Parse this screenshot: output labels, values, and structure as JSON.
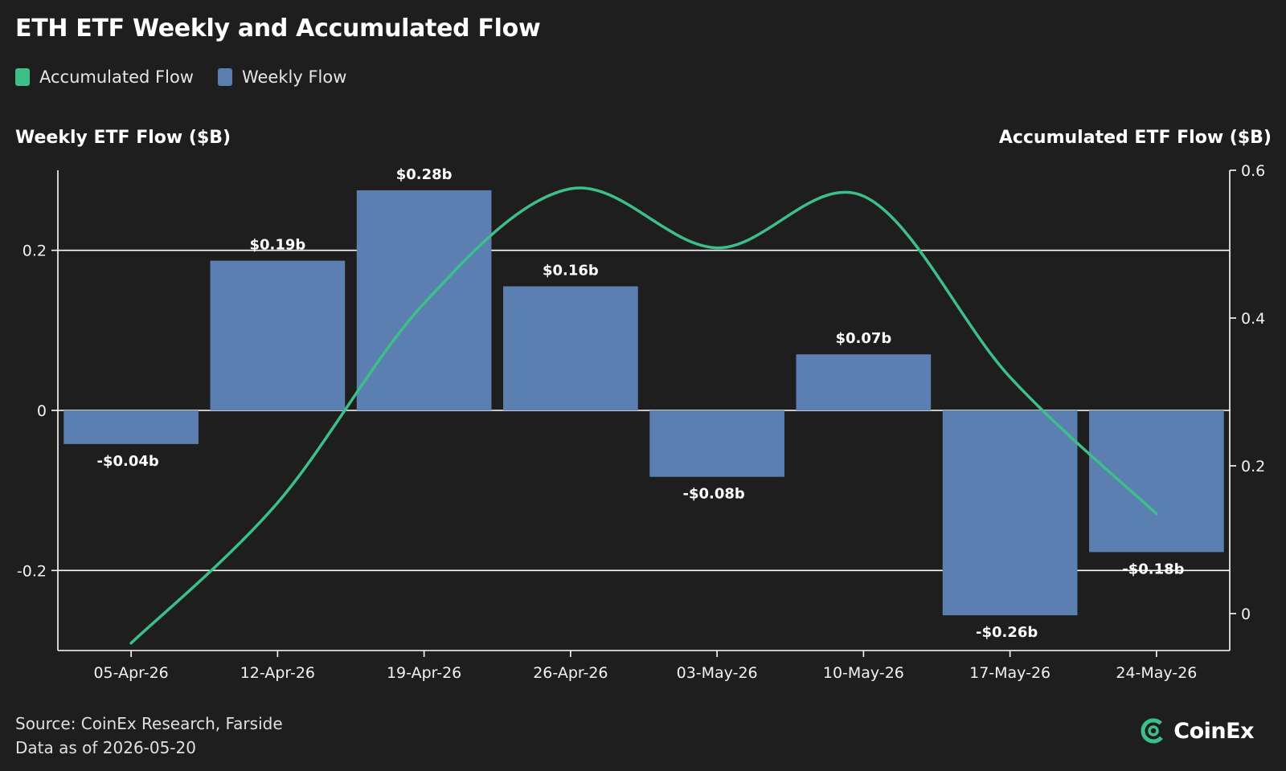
{
  "colors": {
    "background": "#1e1e1e",
    "bar": "#5b7fb0",
    "line": "#3dbf8a",
    "axis": "#ffffff",
    "text": "#f2f2f2"
  },
  "header": {
    "title": "ETH ETF Weekly and Accumulated Flow"
  },
  "legend": {
    "items": [
      {
        "label": "Accumulated Flow",
        "color": "#3dbf8a"
      },
      {
        "label": "Weekly Flow",
        "color": "#5b7fb0"
      }
    ]
  },
  "footer": {
    "source": "Source: CoinEx Research, Farside",
    "data_as_of": "Data as of 2026-05-20",
    "logo_text": "CoinEx",
    "logo_icon": "coinex-logo-icon"
  },
  "chart_data": {
    "type": "bar",
    "categories": [
      "05-Apr-26",
      "12-Apr-26",
      "19-Apr-26",
      "26-Apr-26",
      "03-May-26",
      "10-May-26",
      "17-May-26",
      "24-May-26"
    ],
    "series": [
      {
        "name": "Weekly Flow",
        "type": "bar",
        "axis": "left",
        "values": [
          -0.042,
          0.187,
          0.275,
          0.155,
          -0.083,
          0.07,
          -0.256,
          -0.177
        ],
        "labels": [
          "-$0.04b",
          "$0.19b",
          "$0.28b",
          "$0.16b",
          "-$0.08b",
          "$0.07b",
          "-$0.26b",
          "-$0.18b"
        ]
      },
      {
        "name": "Accumulated Flow",
        "type": "line",
        "axis": "right",
        "values": [
          -0.04,
          0.15,
          0.42,
          0.575,
          0.495,
          0.565,
          0.32,
          0.135
        ]
      }
    ],
    "ylabel": "Weekly ETF Flow ($B)",
    "y2label": "Accumulated ETF Flow ($B)",
    "ylim": [
      -0.3,
      0.3
    ],
    "y2lim": [
      -0.05,
      0.6
    ],
    "yticks": [
      {
        "value": 0.2,
        "label": "0.2"
      },
      {
        "value": 0,
        "label": "0"
      },
      {
        "value": -0.2,
        "label": "-0.2"
      }
    ],
    "y2ticks": [
      {
        "value": 0.6,
        "label": "0.6"
      },
      {
        "value": 0.4,
        "label": "0.4"
      },
      {
        "value": 0.2,
        "label": "0.2"
      },
      {
        "value": 0,
        "label": "0"
      }
    ],
    "grid": "horizontal at left-axis ticks",
    "legend_position": "top-left"
  }
}
